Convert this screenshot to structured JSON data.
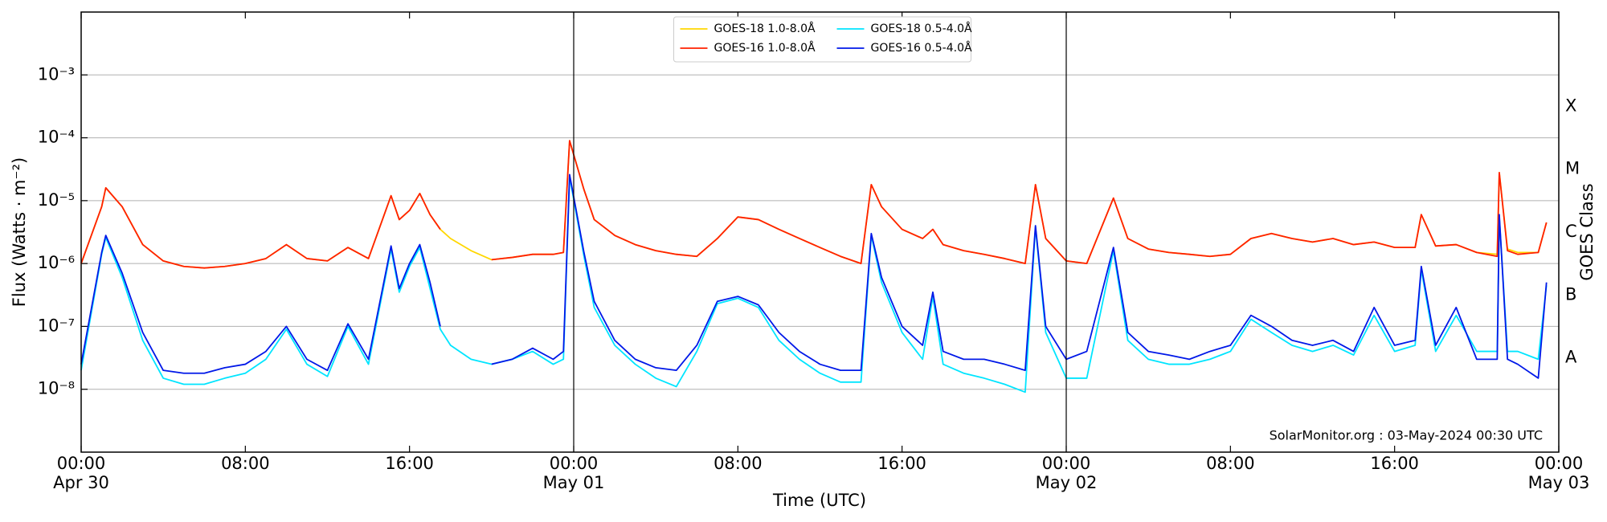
{
  "chart_data": {
    "type": "line",
    "xlabel": "Time (UTC)",
    "ylabel": "Flux (Watts · m⁻²)",
    "y2label": "GOES Class",
    "annotation": "SolarMonitor.org : 03-May-2024 00:30 UTC",
    "yscale": "log",
    "grid": true,
    "legend": "upper center",
    "xlim": [
      0,
      72
    ],
    "ylim": [
      1e-09,
      0.01
    ],
    "y2lim": [
      1e-09,
      0.01
    ],
    "vlines": [
      24,
      48
    ],
    "xticks": [
      {
        "value": 0,
        "label": "00:00\nApr 30"
      },
      {
        "value": 8,
        "label": "08:00"
      },
      {
        "value": 16,
        "label": "16:00"
      },
      {
        "value": 24,
        "label": "00:00\nMay 01"
      },
      {
        "value": 32,
        "label": "08:00"
      },
      {
        "value": 40,
        "label": "16:00"
      },
      {
        "value": 48,
        "label": "00:00\nMay 02"
      },
      {
        "value": 56,
        "label": "08:00"
      },
      {
        "value": 64,
        "label": "16:00"
      },
      {
        "value": 72,
        "label": "00:00\nMay 03"
      }
    ],
    "yticks": [
      {
        "value": 1e-08,
        "label": "10⁻⁸"
      },
      {
        "value": 1e-07,
        "label": "10⁻⁷"
      },
      {
        "value": 1e-06,
        "label": "10⁻⁶"
      },
      {
        "value": 1e-05,
        "label": "10⁻⁵"
      },
      {
        "value": 0.0001,
        "label": "10⁻⁴"
      },
      {
        "value": 0.001,
        "label": "10⁻³"
      }
    ],
    "y2ticks": [
      {
        "value": 3.16e-08,
        "label": "A"
      },
      {
        "value": 3.16e-07,
        "label": "B"
      },
      {
        "value": 3.16e-06,
        "label": "C"
      },
      {
        "value": 3.16e-05,
        "label": "M"
      },
      {
        "value": 0.000316,
        "label": "X"
      }
    ],
    "x": [
      0,
      1,
      1.2,
      2,
      3,
      4,
      5,
      6,
      7,
      8,
      9,
      10,
      11,
      12,
      13,
      14,
      15.1,
      15.5,
      16,
      16.5,
      17,
      17.5,
      18,
      19,
      20,
      21,
      22,
      23,
      23.5,
      23.8,
      24.5,
      25,
      26,
      27,
      28,
      29,
      30,
      31,
      32,
      33,
      34,
      35,
      36,
      37,
      38,
      38.5,
      39,
      40,
      41,
      41.5,
      42,
      43,
      44,
      45,
      46,
      46.5,
      47,
      48,
      49,
      50.3,
      51,
      52,
      53,
      54,
      55,
      56,
      57,
      58,
      59,
      60,
      61,
      62,
      63,
      64,
      65,
      65.3,
      66,
      67,
      68,
      69,
      69.1,
      69.5,
      70,
      71,
      71.4
    ],
    "series": [
      {
        "name": "GOES-18 1.0-8.0Å",
        "color": "#ffd700",
        "values": [
          1e-06,
          8e-06,
          1.6e-05,
          8e-06,
          2e-06,
          1.1e-06,
          9e-07,
          8.5e-07,
          9e-07,
          1e-06,
          1.2e-06,
          2e-06,
          1.2e-06,
          1.1e-06,
          1.8e-06,
          1.2e-06,
          1.2e-05,
          5e-06,
          7e-06,
          1.3e-05,
          6e-06,
          3.5e-06,
          2.5e-06,
          1.6e-06,
          1.15e-06,
          1.25e-06,
          1.4e-06,
          1.4e-06,
          1.5e-06,
          9e-05,
          1.5e-05,
          5e-06,
          2.8e-06,
          2e-06,
          1.6e-06,
          1.4e-06,
          1.3e-06,
          2.5e-06,
          5.5e-06,
          5e-06,
          3.5e-06,
          2.5e-06,
          1.8e-06,
          1.3e-06,
          1e-06,
          1.8e-05,
          8e-06,
          3.5e-06,
          2.5e-06,
          3.5e-06,
          2e-06,
          1.6e-06,
          1.4e-06,
          1.2e-06,
          1e-06,
          1.8e-05,
          2.5e-06,
          1.1e-06,
          1e-06,
          1.1e-05,
          2.5e-06,
          1.7e-06,
          1.5e-06,
          1.4e-06,
          1.3e-06,
          1.4e-06,
          2.5e-06,
          3e-06,
          2.5e-06,
          2.2e-06,
          2.5e-06,
          2e-06,
          2.2e-06,
          1.8e-06,
          1.8e-06,
          6e-06,
          1.9e-06,
          2e-06,
          1.5e-06,
          1.4e-06,
          2.8e-05,
          1.7e-06,
          1.5e-06,
          1.5e-06,
          4.5e-06
        ]
      },
      {
        "name": "GOES-16 1.0-8.0Å",
        "color": "#ff2000",
        "values": [
          1e-06,
          8e-06,
          1.6e-05,
          8e-06,
          2e-06,
          1.1e-06,
          9e-07,
          8.5e-07,
          9e-07,
          1e-06,
          1.2e-06,
          2e-06,
          1.2e-06,
          1.1e-06,
          1.8e-06,
          1.2e-06,
          1.2e-05,
          5e-06,
          7e-06,
          1.3e-05,
          6e-06,
          3.5e-06,
          null,
          null,
          1.15e-06,
          1.25e-06,
          1.4e-06,
          1.4e-06,
          1.5e-06,
          9e-05,
          1.5e-05,
          5e-06,
          2.8e-06,
          2e-06,
          1.6e-06,
          1.4e-06,
          1.3e-06,
          2.5e-06,
          5.5e-06,
          5e-06,
          3.5e-06,
          2.5e-06,
          1.8e-06,
          1.3e-06,
          1e-06,
          1.8e-05,
          8e-06,
          3.5e-06,
          2.5e-06,
          3.5e-06,
          2e-06,
          1.6e-06,
          1.4e-06,
          1.2e-06,
          1e-06,
          1.8e-05,
          2.5e-06,
          1.1e-06,
          1e-06,
          1.1e-05,
          2.5e-06,
          1.7e-06,
          1.5e-06,
          1.4e-06,
          1.3e-06,
          1.4e-06,
          2.5e-06,
          3e-06,
          2.5e-06,
          2.2e-06,
          2.5e-06,
          2e-06,
          2.2e-06,
          1.8e-06,
          1.8e-06,
          6e-06,
          1.9e-06,
          2e-06,
          1.5e-06,
          1.3e-06,
          2.8e-05,
          1.6e-06,
          1.4e-06,
          1.5e-06,
          4.5e-06
        ]
      },
      {
        "name": "GOES-18 0.5-4.0Å",
        "color": "#00e5ff",
        "values": [
          2e-08,
          1.4e-06,
          2.6e-06,
          6e-07,
          6e-08,
          1.5e-08,
          1.2e-08,
          1.2e-08,
          1.5e-08,
          1.8e-08,
          3e-08,
          9e-08,
          2.5e-08,
          1.6e-08,
          1e-07,
          2.5e-08,
          1.7e-06,
          3.5e-07,
          9e-07,
          1.8e-06,
          4e-07,
          9e-08,
          5e-08,
          3e-08,
          2.5e-08,
          3e-08,
          4e-08,
          2.5e-08,
          3e-08,
          2.4e-05,
          1.3e-06,
          2e-07,
          5e-08,
          2.5e-08,
          1.5e-08,
          1.1e-08,
          4e-08,
          2.3e-07,
          2.8e-07,
          2e-07,
          6e-08,
          3e-08,
          1.8e-08,
          1.3e-08,
          1.3e-08,
          2.8e-06,
          5e-07,
          8e-08,
          3e-08,
          3e-07,
          2.5e-08,
          1.8e-08,
          1.5e-08,
          1.2e-08,
          9e-09,
          3.8e-06,
          8e-08,
          1.5e-08,
          1.5e-08,
          1.6e-06,
          6e-08,
          3e-08,
          2.5e-08,
          2.5e-08,
          3e-08,
          4e-08,
          1.3e-07,
          8e-08,
          5e-08,
          4e-08,
          5e-08,
          3.5e-08,
          1.5e-07,
          4e-08,
          5e-08,
          8e-07,
          4e-08,
          1.5e-07,
          4e-08,
          4e-08,
          5.5e-06,
          4e-08,
          4e-08,
          3e-08,
          4.5e-07
        ]
      },
      {
        "name": "GOES-16 0.5-4.0Å",
        "color": "#0018e8",
        "values": [
          2.5e-08,
          1.5e-06,
          2.8e-06,
          7e-07,
          8e-08,
          2e-08,
          1.8e-08,
          1.8e-08,
          2.2e-08,
          2.5e-08,
          4e-08,
          1e-07,
          3e-08,
          2e-08,
          1.1e-07,
          3e-08,
          1.9e-06,
          4e-07,
          1e-06,
          2e-06,
          5e-07,
          1e-07,
          null,
          null,
          2.5e-08,
          3e-08,
          4.5e-08,
          3e-08,
          4e-08,
          2.6e-05,
          1.5e-06,
          2.5e-07,
          6e-08,
          3e-08,
          2.2e-08,
          2e-08,
          5e-08,
          2.5e-07,
          3e-07,
          2.2e-07,
          8e-08,
          4e-08,
          2.5e-08,
          2e-08,
          2e-08,
          3e-06,
          6e-07,
          1e-07,
          5e-08,
          3.5e-07,
          4e-08,
          3e-08,
          3e-08,
          2.5e-08,
          2e-08,
          4e-06,
          1e-07,
          3e-08,
          4e-08,
          1.8e-06,
          8e-08,
          4e-08,
          3.5e-08,
          3e-08,
          4e-08,
          5e-08,
          1.5e-07,
          1e-07,
          6e-08,
          5e-08,
          6e-08,
          4e-08,
          2e-07,
          5e-08,
          6e-08,
          9e-07,
          5e-08,
          2e-07,
          3e-08,
          3e-08,
          6e-06,
          3e-08,
          2.5e-08,
          1.5e-08,
          5e-07
        ]
      }
    ]
  }
}
